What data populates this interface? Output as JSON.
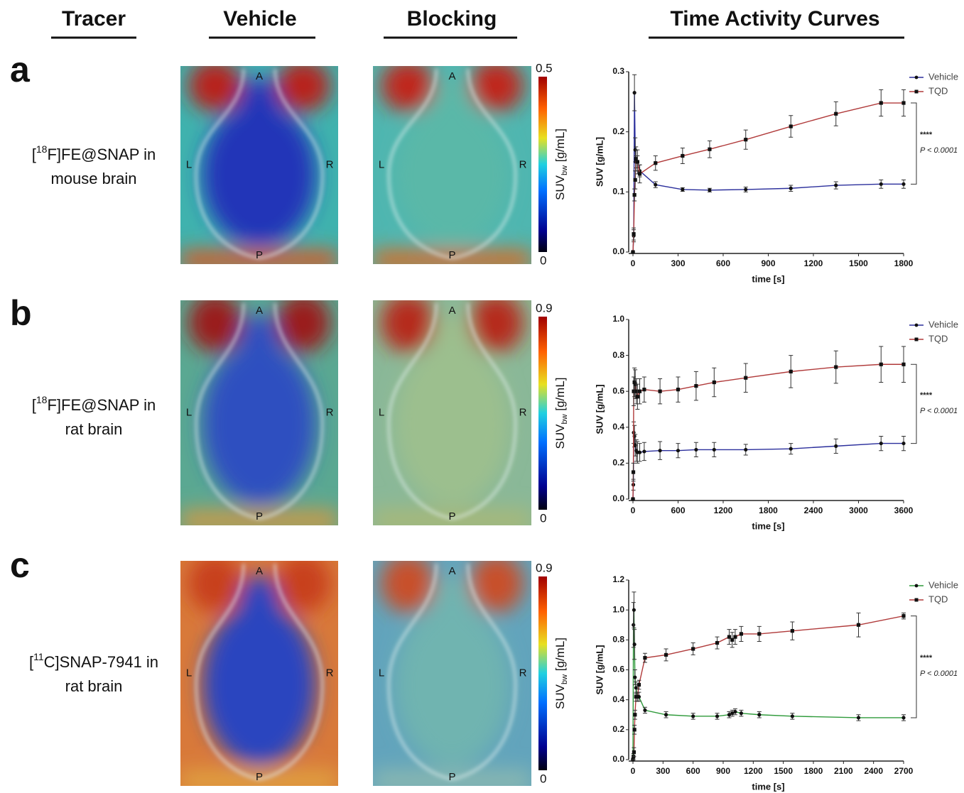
{
  "figure": {
    "headers": [
      "Tracer",
      "Vehicle",
      "Blocking",
      "Time Activity Curves"
    ],
    "orientation": [
      "A",
      "L",
      "R",
      "P"
    ],
    "colorbar_label": [
      "SUV",
      "bw",
      " [g/mL]"
    ],
    "panels": [
      {
        "letter": "a",
        "tracer": [
          "[",
          "18",
          "F]FE@SNAP in",
          "mouse brain"
        ],
        "colorbar_max": 0.5,
        "colorbar_min": 0
      },
      {
        "letter": "b",
        "tracer": [
          "[",
          "18",
          "F]FE@SNAP in",
          "rat brain"
        ],
        "colorbar_max": 0.9,
        "colorbar_min": 0
      },
      {
        "letter": "c",
        "tracer": [
          "[",
          "11",
          "C]SNAP-7941 in",
          "rat brain"
        ],
        "colorbar_max": 0.9,
        "colorbar_min": 0
      }
    ]
  },
  "chart_data": [
    {
      "type": "line",
      "x_label": "time [s]",
      "y_label": "SUV [g/mL]",
      "significance": "****",
      "p_value": "P < 0.0001",
      "x": [
        0,
        5,
        10,
        15,
        20,
        30,
        45,
        150,
        330,
        510,
        750,
        1050,
        1350,
        1650,
        1800
      ],
      "xlim": [
        0,
        1800
      ],
      "xticks": [
        0,
        300,
        600,
        900,
        1200,
        1500,
        1800
      ],
      "ylim": [
        0,
        0.3
      ],
      "yticks": [
        {
          "value": 0,
          "label": "0.0"
        },
        0.1,
        0.2,
        0.3
      ],
      "series": [
        {
          "name": "Vehicle",
          "color": "#2b2f9c",
          "values": [
            0,
            0.027,
            0.265,
            0.17,
            0.15,
            0.15,
            0.135,
            0.112,
            0.104,
            0.103,
            0.104,
            0.106,
            0.111,
            0.113,
            0.113
          ],
          "errors": [
            0,
            0.01,
            0.03,
            0.02,
            0.01,
            0.01,
            0.01,
            0.005,
            0.003,
            0.003,
            0.004,
            0.005,
            0.006,
            0.007,
            0.007
          ]
        },
        {
          "name": "TQD",
          "color": "#b03a3a",
          "values": [
            0,
            0.03,
            0.095,
            0.12,
            0.155,
            0.15,
            0.13,
            0.148,
            0.16,
            0.171,
            0.187,
            0.209,
            0.23,
            0.248,
            0.248
          ],
          "errors": [
            0,
            0.01,
            0.01,
            0.015,
            0.02,
            0.02,
            0.015,
            0.012,
            0.013,
            0.014,
            0.016,
            0.018,
            0.02,
            0.022,
            0.022
          ]
        }
      ]
    },
    {
      "type": "line",
      "x_label": "time [s]",
      "y_label": "SUV [g/mL]",
      "significance": "****",
      "p_value": "P < 0.0001",
      "x": [
        0,
        5,
        10,
        20,
        30,
        45,
        60,
        90,
        150,
        360,
        600,
        840,
        1080,
        1500,
        2100,
        2700,
        3300,
        3600
      ],
      "xlim": [
        0,
        3600
      ],
      "xticks": [
        0,
        600,
        1200,
        1800,
        2400,
        3000,
        3600
      ],
      "ylim": [
        0,
        1
      ],
      "yticks": [
        {
          "value": 0,
          "label": "0.0"
        },
        0.2,
        0.4,
        0.6,
        0.8,
        {
          "value": 1,
          "label": "1.0"
        }
      ],
      "series": [
        {
          "name": "Vehicle",
          "color": "#2b2f9c",
          "values": [
            0,
            0.08,
            0.37,
            0.35,
            0.3,
            0.27,
            0.26,
            0.26,
            0.265,
            0.27,
            0.27,
            0.275,
            0.275,
            0.275,
            0.28,
            0.295,
            0.31,
            0.31
          ],
          "errors": [
            0,
            0.03,
            0.06,
            0.06,
            0.06,
            0.06,
            0.06,
            0.05,
            0.05,
            0.05,
            0.04,
            0.04,
            0.04,
            0.03,
            0.03,
            0.04,
            0.04,
            0.04
          ]
        },
        {
          "name": "TQD",
          "color": "#b03a3a",
          "values": [
            0,
            0.15,
            0.6,
            0.65,
            0.64,
            0.6,
            0.57,
            0.6,
            0.61,
            0.6,
            0.61,
            0.63,
            0.65,
            0.675,
            0.71,
            0.735,
            0.75,
            0.75
          ],
          "errors": [
            0,
            0.05,
            0.08,
            0.08,
            0.08,
            0.07,
            0.07,
            0.07,
            0.07,
            0.07,
            0.07,
            0.08,
            0.08,
            0.08,
            0.09,
            0.09,
            0.1,
            0.1
          ]
        }
      ]
    },
    {
      "type": "line",
      "x_label": "time [s]",
      "y_label": "SUV [g/mL]",
      "significance": "****",
      "p_value": "P < 0.0001",
      "x": [
        0,
        5,
        10,
        15,
        20,
        30,
        45,
        60,
        120,
        330,
        600,
        840,
        960,
        990,
        1020,
        1080,
        1260,
        1590,
        2250,
        2700
      ],
      "xlim": [
        0,
        2700
      ],
      "xticks": [
        0,
        300,
        600,
        900,
        1200,
        1500,
        1800,
        2100,
        2400,
        2700
      ],
      "ylim": [
        0,
        1.2
      ],
      "yticks": [
        {
          "value": 0,
          "label": "0.0"
        },
        0.2,
        0.4,
        0.6,
        0.8,
        {
          "value": 1,
          "label": "1.0"
        },
        1.2
      ],
      "series": [
        {
          "name": "Vehicle",
          "color": "#2e9a3a",
          "values": [
            0,
            0.9,
            1.0,
            0.77,
            0.55,
            0.48,
            0.42,
            0.42,
            0.33,
            0.3,
            0.29,
            0.29,
            0.3,
            0.31,
            0.32,
            0.31,
            0.3,
            0.29,
            0.28,
            0.28
          ],
          "errors": [
            0,
            0.15,
            0.12,
            0.1,
            0.05,
            0.04,
            0.03,
            0.03,
            0.02,
            0.02,
            0.02,
            0.02,
            0.02,
            0.02,
            0.02,
            0.02,
            0.02,
            0.02,
            0.02,
            0.02
          ]
        },
        {
          "name": "TQD",
          "color": "#b03a3a",
          "values": [
            0,
            0.02,
            0.05,
            0.2,
            0.3,
            0.42,
            0.42,
            0.5,
            0.68,
            0.7,
            0.74,
            0.78,
            0.82,
            0.8,
            0.82,
            0.84,
            0.84,
            0.86,
            0.9,
            0.96
          ],
          "errors": [
            0,
            0.02,
            0.03,
            0.03,
            0.03,
            0.03,
            0.03,
            0.03,
            0.03,
            0.04,
            0.04,
            0.04,
            0.05,
            0.05,
            0.05,
            0.05,
            0.05,
            0.06,
            0.08,
            0.02
          ]
        }
      ]
    }
  ]
}
